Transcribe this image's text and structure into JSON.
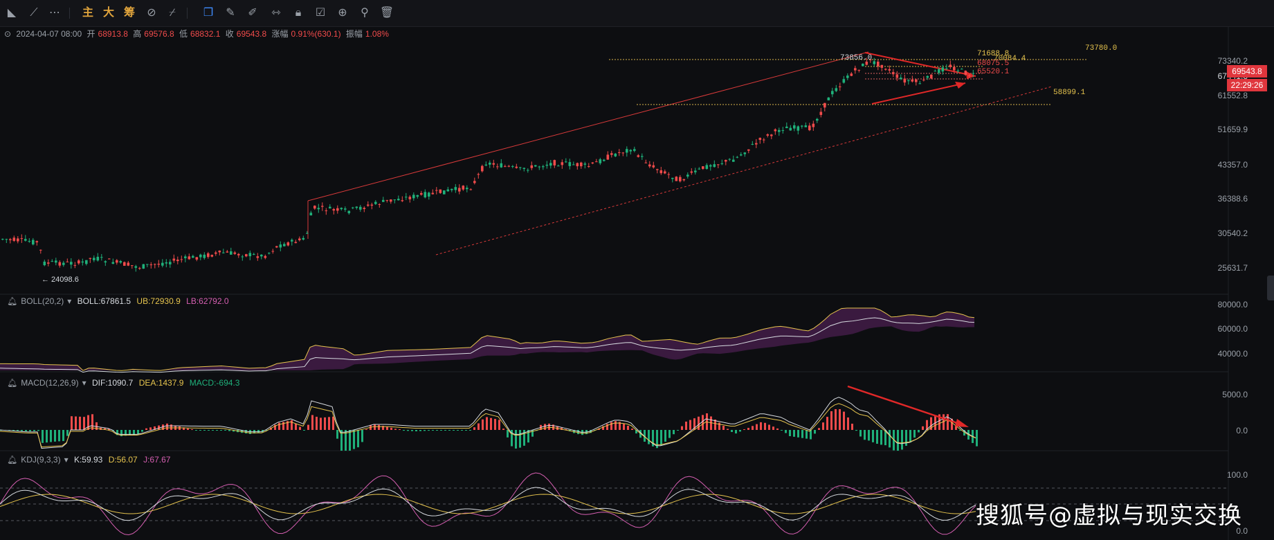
{
  "toolbar": {
    "tools": [
      "line-tool-icon",
      "trend-line-icon",
      "more-icon"
    ],
    "labels": {
      "main": "主",
      "big": "大",
      "chips": "筹"
    },
    "right_tools": [
      "copy-icon",
      "ruler-icon",
      "pen-icon",
      "compare-icon",
      "lock-icon",
      "note-icon",
      "magnet-icon",
      "filter-icon",
      "trash-icon"
    ]
  },
  "ohlc": {
    "date": "2024-04-07 08:00",
    "open_label": "开",
    "open": "68913.8",
    "high_label": "高",
    "high": "69576.8",
    "low_label": "低",
    "low": "68832.1",
    "close_label": "收",
    "close": "69543.8",
    "change_label": "涨幅",
    "change": "0.91%(630.1)",
    "amp_label": "振幅",
    "amp": "1.08%"
  },
  "price_axis": [
    "73340.2",
    "67441.3",
    "61552.8",
    "51659.9",
    "43357.0",
    "36388.6",
    "30540.2",
    "25631.7"
  ],
  "current_price": "69543.8",
  "countdown": "22:29:26",
  "annotations": {
    "low_label": "← 24098.6",
    "peak": "73856.0",
    "level_top_right": "73780.0",
    "level_a": "71688.8",
    "level_b": "70084.4",
    "level_c": "68075.5",
    "level_d": "65520.1",
    "level_support": "58899.1"
  },
  "boll": {
    "name": "BOLL(20,2)",
    "mid": "BOLL:67861.5",
    "ub": "UB:72930.9",
    "lb": "LB:62792.0",
    "axis": [
      "80000.0",
      "60000.0",
      "40000.0"
    ]
  },
  "macd": {
    "name": "MACD(12,26,9)",
    "dif": "DIF:1090.7",
    "dea": "DEA:1437.9",
    "macd": "MACD:-694.3",
    "axis": [
      "5000.0",
      "0.0"
    ]
  },
  "kdj": {
    "name": "KDJ(9,3,3)",
    "k": "K:59.93",
    "d": "D:56.07",
    "j": "J:67.67",
    "axis": [
      "100.0",
      "0.0"
    ]
  },
  "watermark": "搜狐号@虚拟与现实交换",
  "colors": {
    "up": "#f04b4b",
    "down": "#1fb07a",
    "bg": "#0d0e11",
    "accent": "#3f8cff"
  }
}
